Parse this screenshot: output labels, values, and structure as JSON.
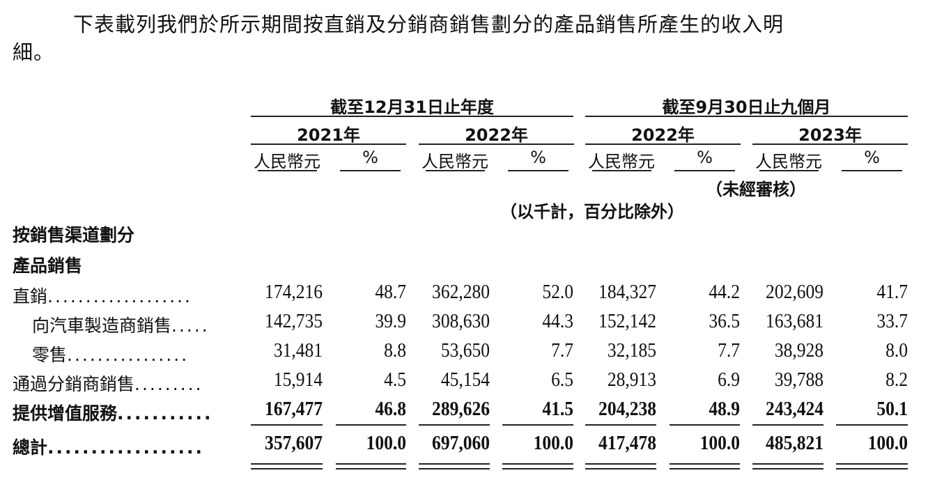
{
  "intro": {
    "line1": "下表載列我們於所示期間按直銷及分銷商銷售劃分的產品銷售所產生的收入明",
    "line2": "細。"
  },
  "header": {
    "group1": "截至12月31日止年度",
    "group2": "截至9月30日止九個月",
    "years": [
      "2021年",
      "2022年",
      "2022年",
      "2023年"
    ],
    "amount_label": "人民幣元",
    "pct_label": "%",
    "unaudited": "（未經審核）",
    "units_note": "（以千計，百分比除外）"
  },
  "sections": {
    "by_channel": "按銷售渠道劃分",
    "product_sales": "產品銷售"
  },
  "rows": [
    {
      "label": "直銷",
      "dots": "...................",
      "indent": false,
      "bold": false,
      "values": [
        "174,216",
        "48.7",
        "362,280",
        "52.0",
        "184,327",
        "44.2",
        "202,609",
        "41.7"
      ]
    },
    {
      "label": "向汽車製造商銷售",
      "dots": ".....",
      "indent": true,
      "bold": false,
      "values": [
        "142,735",
        "39.9",
        "308,630",
        "44.3",
        "152,142",
        "36.5",
        "163,681",
        "33.7"
      ]
    },
    {
      "label": "零售",
      "dots": "................",
      "indent": true,
      "bold": false,
      "values": [
        "31,481",
        "8.8",
        "53,650",
        "7.7",
        "32,185",
        "7.7",
        "38,928",
        "8.0"
      ]
    },
    {
      "label": "通過分銷商銷售",
      "dots": ".........",
      "indent": false,
      "bold": false,
      "values": [
        "15,914",
        "4.5",
        "45,154",
        "6.5",
        "28,913",
        "6.9",
        "39,788",
        "8.2"
      ]
    },
    {
      "label": "提供增值服務",
      "dots": "...........",
      "indent": false,
      "bold": true,
      "values": [
        "167,477",
        "46.8",
        "289,626",
        "41.5",
        "204,238",
        "48.9",
        "243,424",
        "50.1"
      ]
    },
    {
      "label": "總計",
      "dots": "..................",
      "indent": false,
      "bold": true,
      "values": [
        "357,607",
        "100.0",
        "697,060",
        "100.0",
        "417,478",
        "100.0",
        "485,821",
        "100.0"
      ]
    }
  ]
}
